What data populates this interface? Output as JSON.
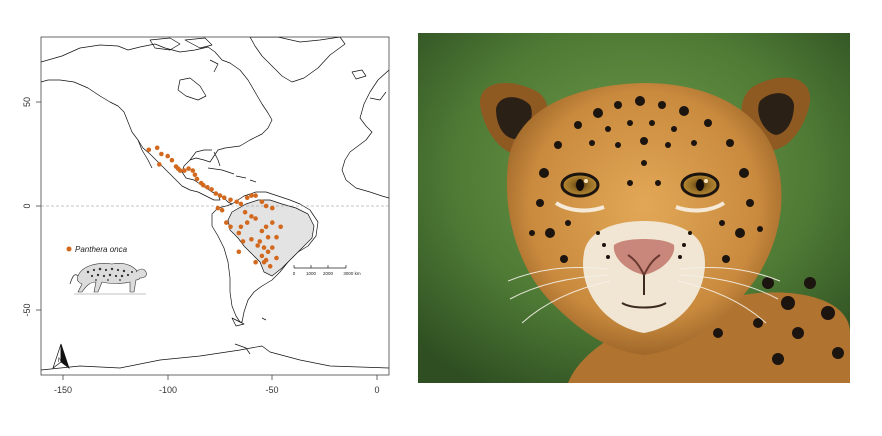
{
  "map": {
    "x_ticks": [
      "-150",
      "-100",
      "-50",
      "0"
    ],
    "y_ticks": [
      "50",
      "0",
      "-50"
    ],
    "legend_label": "Panthera onca",
    "scale_labels": [
      "0",
      "1000",
      "2000",
      "3000 km"
    ],
    "north_label": "N",
    "occurrence_color": "#d2691e",
    "brazil_fill": "#e3e3e3",
    "occurrences": [
      [
        -105,
        28
      ],
      [
        -103,
        25
      ],
      [
        -109,
        27
      ],
      [
        -100,
        24
      ],
      [
        -98,
        22
      ],
      [
        -104,
        20
      ],
      [
        -96,
        19
      ],
      [
        -92,
        17
      ],
      [
        -94,
        17
      ],
      [
        -95,
        18
      ],
      [
        -90,
        18
      ],
      [
        -88,
        17
      ],
      [
        -87,
        15
      ],
      [
        -86,
        13
      ],
      [
        -84,
        11
      ],
      [
        -83,
        10
      ],
      [
        -81,
        9
      ],
      [
        -79,
        8
      ],
      [
        -77,
        6
      ],
      [
        -75,
        5
      ],
      [
        -73,
        4
      ],
      [
        -70,
        3
      ],
      [
        -67,
        2
      ],
      [
        -65,
        1
      ],
      [
        -62,
        4
      ],
      [
        -60,
        5
      ],
      [
        -58,
        5
      ],
      [
        -55,
        2
      ],
      [
        -53,
        0
      ],
      [
        -50,
        -1
      ],
      [
        -63,
        -3
      ],
      [
        -60,
        -5
      ],
      [
        -58,
        -6
      ],
      [
        -62,
        -8
      ],
      [
        -65,
        -10
      ],
      [
        -55,
        -12
      ],
      [
        -53,
        -10
      ],
      [
        -50,
        -8
      ],
      [
        -52,
        -15
      ],
      [
        -56,
        -17
      ],
      [
        -57,
        -19
      ],
      [
        -54,
        -20
      ],
      [
        -52,
        -22
      ],
      [
        -55,
        -24
      ],
      [
        -53,
        -26
      ],
      [
        -50,
        -20
      ],
      [
        -48,
        -15
      ],
      [
        -46,
        -10
      ],
      [
        -48,
        -25
      ],
      [
        -60,
        -16
      ],
      [
        -64,
        -17
      ],
      [
        -66,
        -13
      ],
      [
        -70,
        -10
      ],
      [
        -72,
        -8
      ],
      [
        -74,
        -2
      ],
      [
        -76,
        -1
      ],
      [
        -66,
        -22
      ],
      [
        -58,
        -27
      ],
      [
        -54,
        -27
      ],
      [
        -51,
        -29
      ]
    ]
  },
  "photo": {
    "subject": "jaguar face",
    "background_color": "#4e7a35",
    "fur_color": "#c98a3e",
    "spot_color": "#1c140e"
  }
}
